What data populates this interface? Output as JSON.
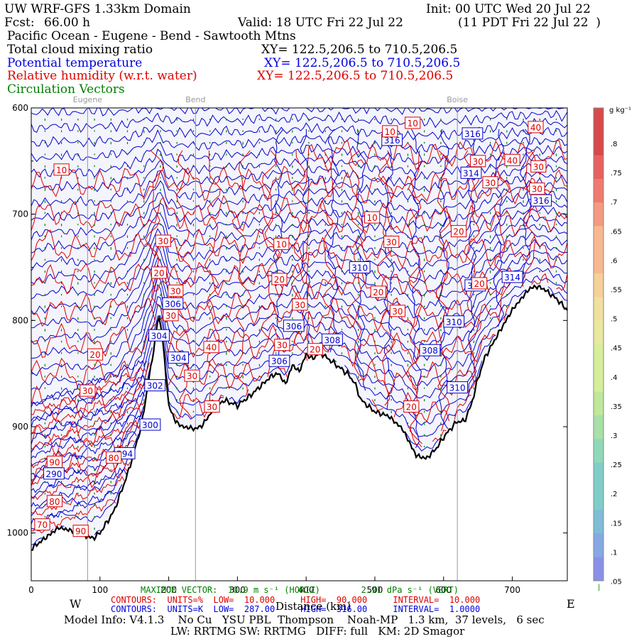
{
  "header": {
    "model_title": "UW WRF-GFS 1.33km Domain",
    "init": "Init: 00 UTC Wed 20 Jul 22",
    "fcst_label": "Fcst:",
    "fcst_value": "66.00 h",
    "valid": "Valid: 18 UTC Fri 22 Jul 22",
    "valid_local": "(11 PDT Fri 22 Jul 22  )",
    "region": "Pacific Ocean - Eugene - Bend - Sawtooth Mtns",
    "field1": "Total cloud mixing ratio",
    "field1_xy": "XY= 122.5,206.5 to 710.5,206.5",
    "field2": "Potential temperature",
    "field2_xy": "XY= 122.5,206.5 to 710.5,206.5",
    "field3": "Relative humidity (w.r.t. water)",
    "field3_xy": "XY= 122.5,206.5 to 710.5,206.5",
    "field4": "Circulation Vectors"
  },
  "footer": {
    "max_vector": "MAXIMUM VECTOR:  10.9 m s⁻¹ (HORIZ)        2.91 dPa s⁻¹ (VERT)",
    "xlabel": "Distance (km)",
    "west": "W",
    "east": "E",
    "contours_red": "CONTOURS:  UNITS=%  LOW=  10.000     HIGH=  90.000     INTERVAL=  10.000",
    "contours_blue": "CONTOURS:  UNITS=K  LOW=  287.00     HIGH=  316.00     INTERVAL=  1.0000",
    "model_info": "Model Info: V4.1.3    No Cu   YSU PBL  Thompson    Noah-MP   1.3 km,  37 levels,   6 sec",
    "physics": "LW: RRTMG SW: RRTMG   DIFF: full   KM: 2D Smagor"
  },
  "colorbar": {
    "units": "g kg⁻¹",
    "ticks": [
      ".8",
      ".75",
      ".7",
      ".65",
      ".6",
      ".55",
      ".5",
      ".45",
      ".4",
      ".35",
      ".3",
      ".25",
      ".2",
      ".15",
      ".1",
      ".05"
    ],
    "bottom_label": "|"
  },
  "chart_data": {
    "type": "cross-section",
    "xlim": [
      0,
      780
    ],
    "ylim": [
      600,
      1045
    ],
    "y_inverted": true,
    "x_ticks": [
      0,
      100,
      200,
      300,
      400,
      500,
      600,
      700
    ],
    "y_ticks": [
      600,
      700,
      800,
      900,
      1000
    ],
    "y_tick_labels": [
      "600",
      "700",
      "800",
      "900",
      "1000"
    ],
    "locations": [
      {
        "name": "Eugene",
        "x": 82
      },
      {
        "name": "Bend",
        "x": 239
      },
      {
        "name": "Boise",
        "x": 620
      }
    ],
    "terrain": {
      "x": [
        0,
        20,
        40,
        60,
        80,
        90,
        100,
        120,
        140,
        160,
        180,
        185,
        190,
        200,
        210,
        220,
        240,
        250,
        260,
        280,
        300,
        320,
        340,
        350,
        360,
        370,
        380,
        390,
        400,
        410,
        420,
        440,
        460,
        470,
        480,
        500,
        520,
        540,
        560,
        575,
        590,
        600,
        610,
        620,
        630,
        640,
        650,
        660,
        680,
        700,
        715,
        725,
        735,
        745,
        755,
        765,
        772,
        780
      ],
      "y": [
        1015,
        1005,
        995,
        998,
        1003,
        1005,
        1000,
        980,
        945,
        900,
        820,
        795,
        810,
        880,
        895,
        900,
        902,
        898,
        888,
        875,
        880,
        870,
        858,
        852,
        850,
        860,
        842,
        848,
        832,
        836,
        830,
        840,
        850,
        858,
        875,
        886,
        890,
        902,
        927,
        930,
        920,
        910,
        902,
        895,
        895,
        880,
        855,
        835,
        812,
        790,
        778,
        770,
        768,
        770,
        775,
        780,
        785,
        790
      ]
    },
    "theta_labels": [
      {
        "v": 290,
        "x": 33,
        "p": 944
      },
      {
        "v": 294,
        "x": 136,
        "p": 925
      },
      {
        "v": 300,
        "x": 173,
        "p": 898
      },
      {
        "v": 302,
        "x": 180,
        "p": 861
      },
      {
        "v": 304,
        "x": 186,
        "p": 814
      },
      {
        "v": 304,
        "x": 214,
        "p": 835
      },
      {
        "v": 306,
        "x": 206,
        "p": 784
      },
      {
        "v": 306,
        "x": 361,
        "p": 838
      },
      {
        "v": 306,
        "x": 382,
        "p": 805
      },
      {
        "v": 308,
        "x": 438,
        "p": 818
      },
      {
        "v": 308,
        "x": 580,
        "p": 828
      },
      {
        "v": 310,
        "x": 478,
        "p": 750
      },
      {
        "v": 310,
        "x": 615,
        "p": 801
      },
      {
        "v": 310,
        "x": 620,
        "p": 863
      },
      {
        "v": 312,
        "x": 646,
        "p": 767
      },
      {
        "v": 314,
        "x": 640,
        "p": 661
      },
      {
        "v": 314,
        "x": 700,
        "p": 759
      },
      {
        "v": 316,
        "x": 525,
        "p": 630
      },
      {
        "v": 316,
        "x": 642,
        "p": 624
      },
      {
        "v": 316,
        "x": 742,
        "p": 687
      }
    ],
    "rh_labels": [
      {
        "v": 10,
        "x": 44,
        "p": 658
      },
      {
        "v": 10,
        "x": 522,
        "p": 622
      },
      {
        "v": 10,
        "x": 555,
        "p": 614
      },
      {
        "v": 10,
        "x": 364,
        "p": 728
      },
      {
        "v": 10,
        "x": 496,
        "p": 703
      },
      {
        "v": 20,
        "x": 186,
        "p": 755
      },
      {
        "v": 20,
        "x": 361,
        "p": 761
      },
      {
        "v": 20,
        "x": 505,
        "p": 773
      },
      {
        "v": 20,
        "x": 622,
        "p": 716
      },
      {
        "v": 20,
        "x": 652,
        "p": 765
      },
      {
        "v": 20,
        "x": 553,
        "p": 881
      },
      {
        "v": 20,
        "x": 93,
        "p": 832
      },
      {
        "v": 20,
        "x": 413,
        "p": 827
      },
      {
        "v": 30,
        "x": 192,
        "p": 725
      },
      {
        "v": 30,
        "x": 210,
        "p": 772
      },
      {
        "v": 30,
        "x": 203,
        "p": 795
      },
      {
        "v": 30,
        "x": 391,
        "p": 785
      },
      {
        "v": 30,
        "x": 365,
        "p": 823
      },
      {
        "v": 30,
        "x": 234,
        "p": 852
      },
      {
        "v": 30,
        "x": 263,
        "p": 881
      },
      {
        "v": 30,
        "x": 82,
        "p": 866
      },
      {
        "v": 30,
        "x": 524,
        "p": 726
      },
      {
        "v": 30,
        "x": 533,
        "p": 791
      },
      {
        "v": 30,
        "x": 650,
        "p": 650
      },
      {
        "v": 30,
        "x": 668,
        "p": 670
      },
      {
        "v": 30,
        "x": 738,
        "p": 655
      },
      {
        "v": 30,
        "x": 736,
        "p": 676
      },
      {
        "v": 40,
        "x": 262,
        "p": 825
      },
      {
        "v": 40,
        "x": 700,
        "p": 649
      },
      {
        "v": 40,
        "x": 734,
        "p": 618
      },
      {
        "v": 80,
        "x": 120,
        "p": 929
      },
      {
        "v": 80,
        "x": 34,
        "p": 970
      },
      {
        "v": 90,
        "x": 34,
        "p": 933
      },
      {
        "v": 90,
        "x": 72,
        "p": 998
      },
      {
        "v": 70,
        "x": 16,
        "p": 992
      }
    ],
    "rh_contours": {
      "low": 10,
      "high": 90,
      "interval": 10,
      "units": "%"
    },
    "theta_contours": {
      "low": 287,
      "high": 316,
      "interval": 1,
      "units": "K"
    }
  },
  "colors": {
    "theta": "#0000cc",
    "rh": "#dd0000",
    "vectors": "#008000",
    "terrain": "#000000",
    "cloud_fill": "#f4f4fc",
    "location_line": "#999999"
  }
}
